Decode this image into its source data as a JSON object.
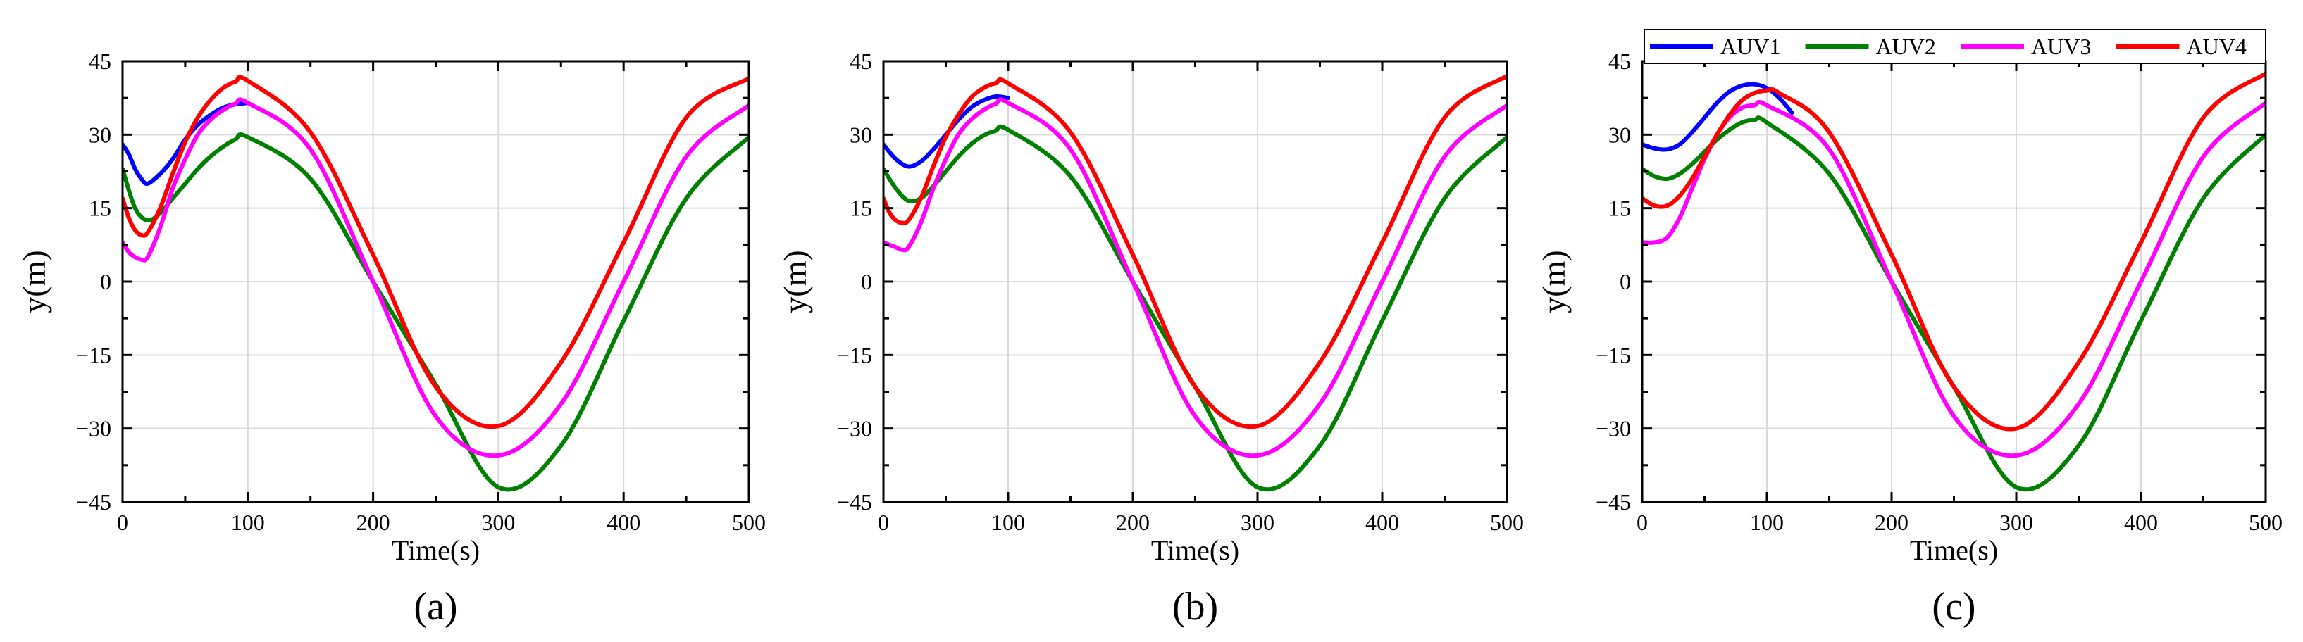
{
  "colors": {
    "AUV1": "#0000ff",
    "AUV2": "#008000",
    "AUV3": "#ff00ff",
    "AUV4": "#ff0000",
    "grid": "#d9d9d9",
    "axis": "#000000"
  },
  "chart_data": [
    {
      "type": "line",
      "caption": "(a)",
      "xlabel": "Time(s)",
      "ylabel": "y(m)",
      "xlim": [
        0,
        500
      ],
      "ylim": [
        -45,
        45
      ],
      "xticks": [
        0,
        100,
        200,
        300,
        400,
        500
      ],
      "xtick_labels": [
        "0",
        "100",
        "200",
        "300",
        "400",
        "500"
      ],
      "yticks": [
        45,
        30,
        15,
        0,
        -15,
        -30,
        -45
      ],
      "ytick_labels": [
        "45",
        "30",
        "15",
        "0",
        "−15",
        "−30",
        "−45"
      ],
      "grid": true,
      "legend": null,
      "series": [
        {
          "name": "AUV1",
          "color": "#0000ff",
          "x": [
            0,
            5,
            10,
            15,
            20,
            30,
            40,
            50,
            60,
            70,
            80,
            90,
            100
          ],
          "y": [
            28,
            26,
            23,
            21,
            20,
            22,
            25,
            29,
            32,
            34,
            35.5,
            36.2,
            36.5
          ]
        },
        {
          "name": "AUV2",
          "color": "#008000",
          "x": [
            0,
            10,
            20,
            30,
            40,
            50,
            60,
            70,
            80,
            90,
            100,
            150,
            200,
            250,
            300,
            350,
            400,
            450,
            500
          ],
          "y": [
            23,
            15,
            12.5,
            14,
            17,
            20,
            23,
            25.5,
            27.5,
            29,
            29.5,
            21,
            0,
            -21,
            -42,
            -33.5,
            -8,
            17,
            29.5
          ]
        },
        {
          "name": "AUV3",
          "color": "#ff00ff",
          "x": [
            0,
            5,
            10,
            15,
            20,
            30,
            40,
            50,
            60,
            70,
            80,
            90,
            100,
            150,
            200,
            250,
            300,
            350,
            400,
            450,
            500
          ],
          "y": [
            8,
            6,
            5,
            4.5,
            5,
            11,
            19,
            25,
            30,
            33,
            35,
            36.3,
            36.5,
            27,
            0,
            -27.5,
            -35.5,
            -25,
            0,
            25.5,
            36
          ]
        },
        {
          "name": "AUV4",
          "color": "#ff0000",
          "x": [
            0,
            5,
            10,
            15,
            20,
            30,
            40,
            50,
            60,
            70,
            80,
            90,
            100,
            150,
            200,
            250,
            300,
            350,
            400,
            450,
            500
          ],
          "y": [
            17,
            13,
            10.5,
            9.5,
            10,
            15,
            22,
            28.5,
            33.5,
            37,
            39.5,
            40.8,
            41,
            30.5,
            5.5,
            -21.5,
            -29.5,
            -16.5,
            8,
            33.5,
            41.5
          ]
        }
      ]
    },
    {
      "type": "line",
      "caption": "(b)",
      "xlabel": "Time(s)",
      "ylabel": "y(m)",
      "xlim": [
        0,
        500
      ],
      "ylim": [
        -45,
        45
      ],
      "xticks": [
        0,
        100,
        200,
        300,
        400,
        500
      ],
      "xtick_labels": [
        "0",
        "100",
        "200",
        "300",
        "400",
        "500"
      ],
      "yticks": [
        45,
        30,
        15,
        0,
        -15,
        -30,
        -45
      ],
      "ytick_labels": [
        "45",
        "30",
        "15",
        "0",
        "−15",
        "−30",
        "−45"
      ],
      "grid": true,
      "legend": null,
      "series": [
        {
          "name": "AUV1",
          "color": "#0000ff",
          "x": [
            0,
            10,
            20,
            30,
            40,
            50,
            60,
            70,
            80,
            90,
            100
          ],
          "y": [
            28,
            25,
            23.5,
            24.5,
            27,
            30,
            33,
            35.5,
            37,
            37.8,
            37.5
          ]
        },
        {
          "name": "AUV2",
          "color": "#008000",
          "x": [
            0,
            10,
            20,
            30,
            40,
            50,
            60,
            70,
            80,
            90,
            100,
            150,
            200,
            250,
            300,
            350,
            400,
            450,
            500
          ],
          "y": [
            23,
            19,
            16.5,
            17,
            19.5,
            22.5,
            25.5,
            28,
            29.8,
            30.8,
            31,
            21.5,
            0,
            -21.5,
            -42,
            -33.5,
            -8,
            17,
            29.5
          ]
        },
        {
          "name": "AUV3",
          "color": "#ff00ff",
          "x": [
            0,
            5,
            10,
            15,
            20,
            30,
            40,
            50,
            60,
            70,
            80,
            90,
            100,
            150,
            200,
            250,
            300,
            350,
            400,
            450,
            500
          ],
          "y": [
            8,
            7.5,
            7,
            6.5,
            7,
            12,
            19,
            25,
            30,
            33,
            35,
            36.3,
            36.5,
            27,
            0,
            -27.5,
            -35.5,
            -25,
            0,
            25.5,
            36
          ]
        },
        {
          "name": "AUV4",
          "color": "#ff0000",
          "x": [
            0,
            5,
            10,
            15,
            20,
            30,
            40,
            50,
            60,
            70,
            80,
            90,
            100,
            150,
            200,
            250,
            300,
            350,
            400,
            450,
            500
          ],
          "y": [
            17,
            14,
            12.5,
            12,
            12.5,
            17,
            23.5,
            29.5,
            34,
            37.5,
            39.5,
            40.5,
            40.5,
            30.5,
            5.5,
            -21.5,
            -29.5,
            -16.5,
            8,
            33.5,
            42
          ]
        }
      ]
    },
    {
      "type": "line",
      "caption": "(c)",
      "xlabel": "Time(s)",
      "ylabel": "y(m)",
      "xlim": [
        0,
        500
      ],
      "ylim": [
        -45,
        45
      ],
      "xticks": [
        0,
        100,
        200,
        300,
        400,
        500
      ],
      "xtick_labels": [
        "0",
        "100",
        "200",
        "300",
        "400",
        "500"
      ],
      "yticks": [
        45,
        30,
        15,
        0,
        -15,
        -30,
        -45
      ],
      "ytick_labels": [
        "45",
        "30",
        "15",
        "0",
        "−15",
        "−30",
        "−45"
      ],
      "grid": true,
      "legend": "top, horizontal",
      "legend_entries": [
        "AUV1",
        "AUV2",
        "AUV3",
        "AUV4"
      ],
      "series": [
        {
          "name": "AUV1",
          "color": "#0000ff",
          "x": [
            0,
            10,
            20,
            30,
            40,
            50,
            60,
            70,
            80,
            90,
            100,
            110,
            120
          ],
          "y": [
            28,
            27.2,
            27,
            28,
            30.5,
            33.5,
            36.5,
            38.8,
            40,
            40.3,
            39.5,
            37.5,
            34.5
          ]
        },
        {
          "name": "AUV2",
          "color": "#008000",
          "x": [
            0,
            10,
            20,
            30,
            40,
            50,
            60,
            70,
            80,
            90,
            100,
            150,
            200,
            250,
            300,
            350,
            400,
            450,
            500
          ],
          "y": [
            23,
            21.5,
            21,
            22,
            24,
            26.5,
            29,
            31,
            32.5,
            33,
            32.5,
            22,
            0,
            -21.5,
            -42,
            -33.5,
            -8,
            17,
            30
          ]
        },
        {
          "name": "AUV3",
          "color": "#ff00ff",
          "x": [
            0,
            10,
            20,
            30,
            40,
            50,
            60,
            70,
            80,
            90,
            100,
            150,
            200,
            250,
            300,
            350,
            400,
            450,
            500
          ],
          "y": [
            8,
            8,
            9,
            13,
            19,
            25,
            30,
            33.5,
            35.5,
            36,
            36,
            27,
            0,
            -27.5,
            -35.5,
            -25,
            0,
            25.5,
            36.5
          ]
        },
        {
          "name": "AUV4",
          "color": "#ff0000",
          "x": [
            0,
            10,
            20,
            30,
            40,
            50,
            60,
            70,
            80,
            90,
            100,
            110,
            150,
            200,
            250,
            300,
            350,
            400,
            450,
            500
          ],
          "y": [
            17,
            15.5,
            15.5,
            17.5,
            21,
            25.5,
            30,
            34,
            37,
            38.5,
            39,
            38.5,
            30.5,
            5.5,
            -21.5,
            -30,
            -16.5,
            8,
            33.5,
            42.5
          ]
        }
      ]
    }
  ]
}
